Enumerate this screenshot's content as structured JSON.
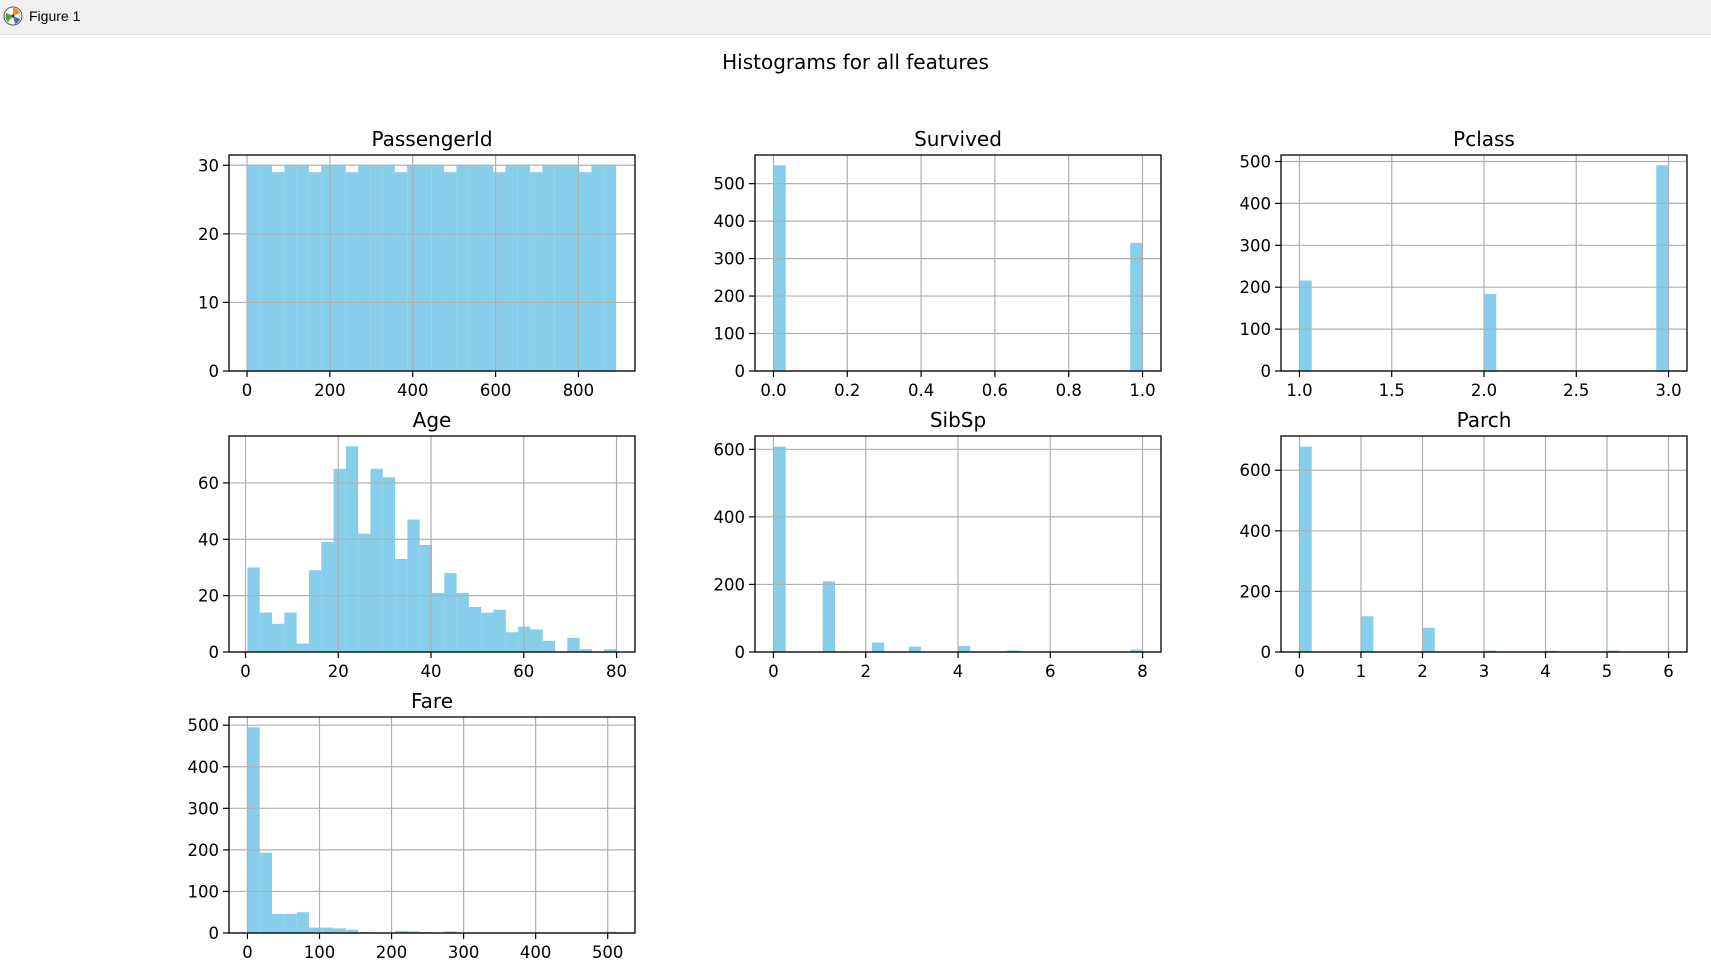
{
  "window": {
    "title": "Figure 1",
    "icon": "matplotlib-icon"
  },
  "figure": {
    "suptitle": "Histograms for all features",
    "bar_color": "#87ceeb",
    "grid_color": "#b0b0b0"
  },
  "chart_data": [
    {
      "type": "bar",
      "title": "PassengerId",
      "xlim": [
        -43.5,
        936.5
      ],
      "ylim": [
        0,
        31.5
      ],
      "xticks": [
        0,
        200,
        400,
        600,
        800
      ],
      "xtick_labels": [
        "0",
        "200",
        "400",
        "600",
        "800"
      ],
      "yticks": [
        0,
        10,
        20,
        30
      ],
      "ytick_labels": [
        "0",
        "10",
        "20",
        "30"
      ],
      "grid": true,
      "bin_range": [
        1,
        891
      ],
      "values": [
        30,
        30,
        29,
        30,
        30,
        29,
        30,
        30,
        29,
        30,
        30,
        30,
        29,
        30,
        30,
        30,
        29,
        30,
        30,
        30,
        29,
        30,
        30,
        29,
        30,
        30,
        30,
        29,
        30,
        30
      ]
    },
    {
      "type": "bar",
      "title": "Survived",
      "xlim": [
        -0.05,
        1.05
      ],
      "ylim": [
        0,
        576.45
      ],
      "xticks": [
        0,
        0.2,
        0.4,
        0.6,
        0.8,
        1.0
      ],
      "xtick_labels": [
        "0.0",
        "0.2",
        "0.4",
        "0.6",
        "0.8",
        "1.0"
      ],
      "yticks": [
        0,
        100,
        200,
        300,
        400,
        500
      ],
      "ytick_labels": [
        "0",
        "100",
        "200",
        "300",
        "400",
        "500"
      ],
      "grid": true,
      "bin_range": [
        0,
        1
      ],
      "values": [
        549,
        0,
        0,
        0,
        0,
        0,
        0,
        0,
        0,
        0,
        0,
        0,
        0,
        0,
        0,
        0,
        0,
        0,
        0,
        0,
        0,
        0,
        0,
        0,
        0,
        0,
        0,
        0,
        0,
        342
      ]
    },
    {
      "type": "bar",
      "title": "Pclass",
      "xlim": [
        0.9,
        3.1
      ],
      "ylim": [
        0,
        515.55
      ],
      "xticks": [
        1.0,
        1.5,
        2.0,
        2.5,
        3.0
      ],
      "xtick_labels": [
        "1.0",
        "1.5",
        "2.0",
        "2.5",
        "3.0"
      ],
      "yticks": [
        0,
        100,
        200,
        300,
        400,
        500
      ],
      "ytick_labels": [
        "0",
        "100",
        "200",
        "300",
        "400",
        "500"
      ],
      "grid": true,
      "bin_range": [
        1,
        3
      ],
      "values": [
        216,
        0,
        0,
        0,
        0,
        0,
        0,
        0,
        0,
        0,
        0,
        0,
        0,
        0,
        0,
        184,
        0,
        0,
        0,
        0,
        0,
        0,
        0,
        0,
        0,
        0,
        0,
        0,
        0,
        491
      ]
    },
    {
      "type": "bar",
      "title": "Age",
      "xlim": [
        -3.56,
        83.98
      ],
      "ylim": [
        0,
        76.65
      ],
      "xticks": [
        0,
        20,
        40,
        60,
        80
      ],
      "xtick_labels": [
        "0",
        "20",
        "40",
        "60",
        "80"
      ],
      "yticks": [
        0,
        20,
        40,
        60
      ],
      "ytick_labels": [
        "0",
        "20",
        "40",
        "60"
      ],
      "grid": true,
      "bin_range": [
        0.42,
        80
      ],
      "values": [
        30,
        14,
        10,
        14,
        3,
        29,
        39,
        65,
        73,
        42,
        65,
        62,
        33,
        47,
        38,
        21,
        28,
        21,
        16,
        14,
        15,
        7,
        9,
        8,
        4,
        0,
        5,
        1,
        0,
        1
      ]
    },
    {
      "type": "bar",
      "title": "SibSp",
      "xlim": [
        -0.4,
        8.4
      ],
      "ylim": [
        0,
        639.45
      ],
      "xticks": [
        0,
        2,
        4,
        6,
        8
      ],
      "xtick_labels": [
        "0",
        "2",
        "4",
        "6",
        "8"
      ],
      "yticks": [
        0,
        200,
        400,
        600
      ],
      "ytick_labels": [
        "0",
        "200",
        "400",
        "600"
      ],
      "grid": true,
      "bin_range": [
        0,
        8
      ],
      "values": [
        608,
        0,
        0,
        0,
        209,
        0,
        0,
        0,
        28,
        0,
        0,
        16,
        0,
        0,
        0,
        18,
        0,
        0,
        0,
        5,
        0,
        0,
        0,
        0,
        0,
        0,
        0,
        0,
        0,
        7
      ]
    },
    {
      "type": "bar",
      "title": "Parch",
      "xlim": [
        -0.3,
        6.3
      ],
      "ylim": [
        0,
        713.0
      ],
      "xticks": [
        0,
        1,
        2,
        3,
        4,
        5,
        6
      ],
      "xtick_labels": [
        "0",
        "1",
        "2",
        "3",
        "4",
        "5",
        "6"
      ],
      "yticks": [
        0,
        200,
        400,
        600
      ],
      "ytick_labels": [
        "0",
        "200",
        "400",
        "600"
      ],
      "grid": true,
      "bin_range": [
        0,
        6
      ],
      "values": [
        678,
        0,
        0,
        0,
        0,
        118,
        0,
        0,
        0,
        0,
        80,
        0,
        0,
        0,
        0,
        5,
        0,
        0,
        0,
        0,
        4,
        0,
        0,
        0,
        0,
        5,
        0,
        0,
        0,
        1
      ]
    },
    {
      "type": "bar",
      "title": "Fare",
      "xlim": [
        -25.6,
        537.9
      ],
      "ylim": [
        0,
        519.75
      ],
      "xticks": [
        0,
        100,
        200,
        300,
        400,
        500
      ],
      "xtick_labels": [
        "0",
        "100",
        "200",
        "300",
        "400",
        "500"
      ],
      "yticks": [
        0,
        100,
        200,
        300,
        400,
        500
      ],
      "ytick_labels": [
        "0",
        "100",
        "200",
        "300",
        "400",
        "500"
      ],
      "grid": true,
      "bin_range": [
        0,
        512.33
      ],
      "values": [
        495,
        193,
        46,
        46,
        50,
        13,
        13,
        11,
        8,
        2,
        0,
        0,
        5,
        4,
        2,
        0,
        4,
        0,
        0,
        0,
        0,
        0,
        0,
        0,
        0,
        0,
        0,
        0,
        0,
        3
      ]
    }
  ]
}
